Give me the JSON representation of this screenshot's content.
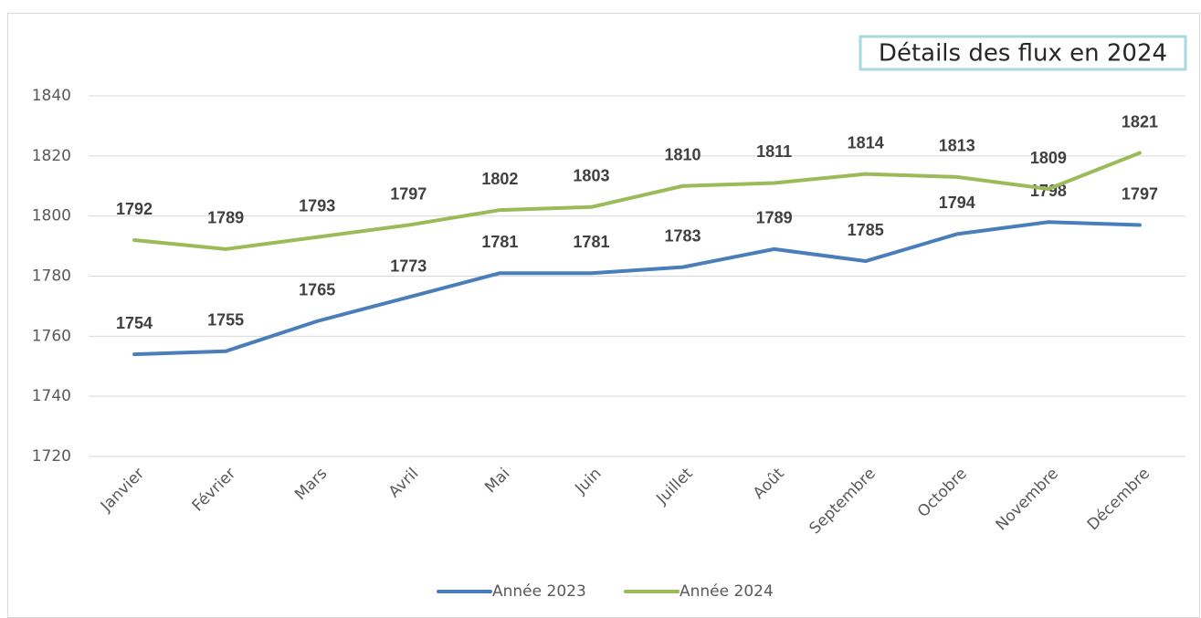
{
  "chart_data": {
    "type": "line",
    "title": "Détails des flux en 2024",
    "categories": [
      "Janvier",
      "Février",
      "Mars",
      "Avril",
      "Mai",
      "Juin",
      "Juillet",
      "Août",
      "Septembre",
      "Octobre",
      "Novembre",
      "Décembre"
    ],
    "series": [
      {
        "name": "Année 2023",
        "color": "#4a7ebb",
        "values": [
          1754,
          1755,
          1765,
          1773,
          1781,
          1781,
          1783,
          1789,
          1785,
          1794,
          1798,
          1797
        ]
      },
      {
        "name": "Année 2024",
        "color": "#9bbb59",
        "values": [
          1792,
          1789,
          1793,
          1797,
          1802,
          1803,
          1810,
          1811,
          1814,
          1813,
          1809,
          1821
        ]
      }
    ],
    "ylim": [
      1720,
      1840
    ],
    "yticks": [
      1720,
      1740,
      1760,
      1780,
      1800,
      1820,
      1840
    ],
    "grid": true,
    "legend": "bottom"
  }
}
